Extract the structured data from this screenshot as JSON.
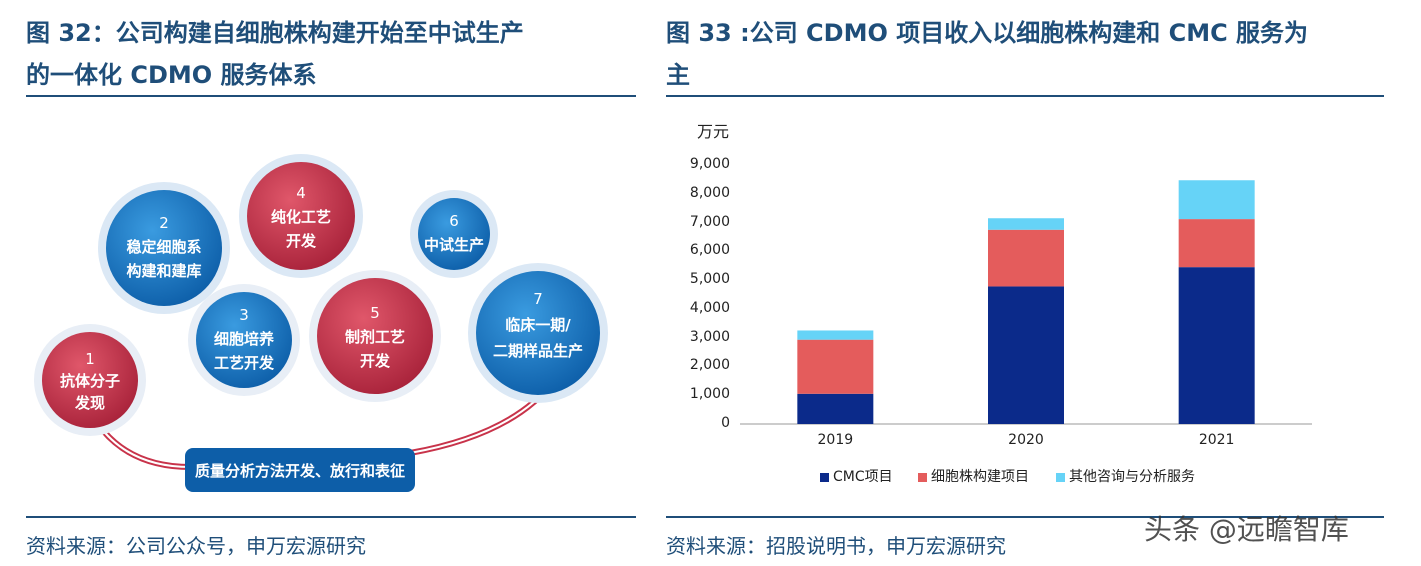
{
  "left": {
    "title_line1": "图 32：公司构建自细胞株构建开始至中试生产",
    "title_line2": "的一体化 CDMO 服务体系",
    "source": "资料来源：公司公众号，申万宏源研究",
    "steps": [
      {
        "num": "1",
        "lines": [
          "抗体分子",
          "发现"
        ],
        "color": "#c8334a"
      },
      {
        "num": "2",
        "lines": [
          "稳定细胞系",
          "构建和建库"
        ],
        "color": "#1b78c2"
      },
      {
        "num": "3",
        "lines": [
          "细胞培养",
          "工艺开发"
        ],
        "color": "#1b78c2"
      },
      {
        "num": "4",
        "lines": [
          "纯化工艺",
          "开发"
        ],
        "color": "#c8334a"
      },
      {
        "num": "5",
        "lines": [
          "制剂工艺",
          "开发"
        ],
        "color": "#c8334a"
      },
      {
        "num": "6",
        "lines": [
          "中试生产"
        ],
        "color": "#1b78c2"
      },
      {
        "num": "7",
        "lines": [
          "临床一期/",
          "二期样品生产"
        ],
        "color": "#1b78c2"
      }
    ],
    "banner": "质量分析方法开发、放行和表征"
  },
  "right": {
    "title_line1": "图 33 :公司 CDMO 项目收入以细胞株构建和 CMC 服务为",
    "title_line2": "主",
    "source": "资料来源：招股说明书，申万宏源研究",
    "unit": "万元"
  },
  "chart_data": {
    "type": "bar",
    "stacked": true,
    "categories": [
      "2019",
      "2020",
      "2021"
    ],
    "series": [
      {
        "name": "CMC项目",
        "values": [
          1050,
          4780,
          5450
        ],
        "color": "#0b2a8a"
      },
      {
        "name": "细胞株构建项目",
        "values": [
          1880,
          1970,
          1670
        ],
        "color": "#e45c5c"
      },
      {
        "name": "其他咨询与分析服务",
        "values": [
          320,
          400,
          1350
        ],
        "color": "#66d3f7"
      }
    ],
    "ylabel": "万元",
    "ylim": [
      0,
      9000
    ],
    "yticks": [
      "0",
      "1,000",
      "2,000",
      "3,000",
      "4,000",
      "5,000",
      "6,000",
      "7,000",
      "8,000",
      "9,000"
    ],
    "legend_position": "bottom",
    "grid": false
  },
  "watermark": "头条 @远瞻智库"
}
